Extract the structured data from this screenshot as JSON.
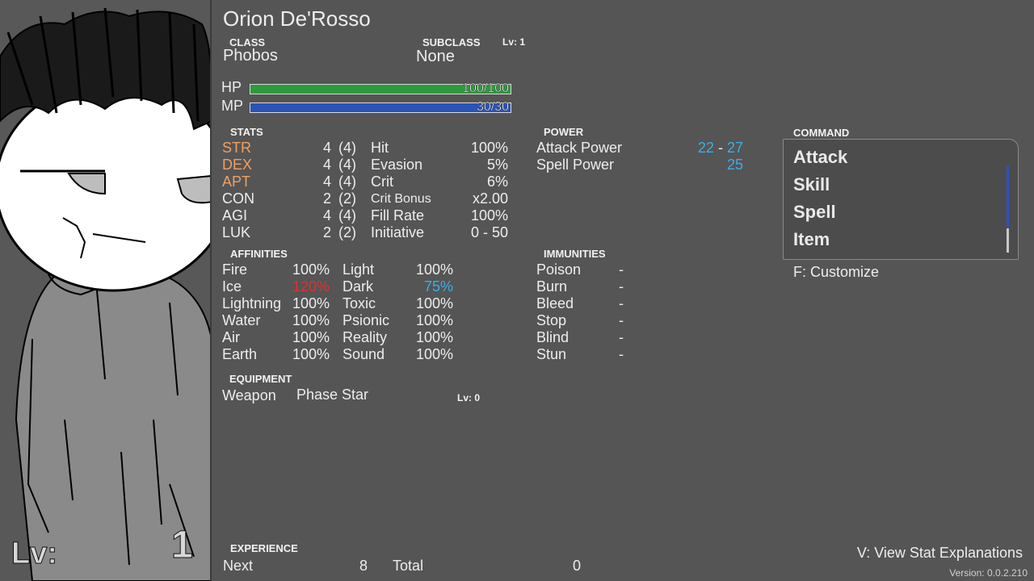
{
  "character": {
    "name": "Orion De'Rosso",
    "class_label": "CLASS",
    "class_value": "Phobos",
    "subclass_label": "SUBCLASS",
    "subclass_level": "Lv: 1",
    "subclass_value": "None",
    "portrait_level_label": "Lv:",
    "portrait_level_value": "1"
  },
  "bars": {
    "hp_label": "HP",
    "hp_text": "100/100",
    "hp_fraction": 1.0,
    "hp_color": "#2e9a3e",
    "mp_label": "MP",
    "mp_text": "30/30",
    "mp_fraction": 1.0,
    "mp_color": "#2a54b8"
  },
  "stats": {
    "header": "STATS",
    "rows": [
      {
        "name": "STR",
        "value": "4",
        "base": "(4)",
        "sub": "Hit",
        "sub_value": "100%",
        "highlight": true
      },
      {
        "name": "DEX",
        "value": "4",
        "base": "(4)",
        "sub": "Evasion",
        "sub_value": "5%",
        "highlight": true
      },
      {
        "name": "APT",
        "value": "4",
        "base": "(4)",
        "sub": "Crit",
        "sub_value": "6%",
        "highlight": true
      },
      {
        "name": "CON",
        "value": "2",
        "base": "(2)",
        "sub": "Crit Bonus",
        "sub_value": "x2.00",
        "highlight": false
      },
      {
        "name": "AGI",
        "value": "4",
        "base": "(4)",
        "sub": "Fill Rate",
        "sub_value": "100%",
        "highlight": false
      },
      {
        "name": "LUK",
        "value": "2",
        "base": "(2)",
        "sub": "Initiative",
        "sub_value": "0 - 50",
        "highlight": false
      }
    ]
  },
  "power": {
    "header": "POWER",
    "attack_label": "Attack Power",
    "attack_min": "22",
    "attack_sep": "-",
    "attack_max": "27",
    "spell_label": "Spell Power",
    "spell_value": "25"
  },
  "affinities": {
    "header": "AFFINITIES",
    "rows": [
      {
        "a": "Fire",
        "av": "100%",
        "b": "Light",
        "bv": "100%"
      },
      {
        "a": "Ice",
        "av": "120%",
        "b": "Dark",
        "bv": "75%"
      },
      {
        "a": "Lightning",
        "av": "100%",
        "b": "Toxic",
        "bv": "100%"
      },
      {
        "a": "Water",
        "av": "100%",
        "b": "Psionic",
        "bv": "100%"
      },
      {
        "a": "Air",
        "av": "100%",
        "b": "Reality",
        "bv": "100%"
      },
      {
        "a": "Earth",
        "av": "100%",
        "b": "Sound",
        "bv": "100%"
      }
    ]
  },
  "immunities": {
    "header": "IMMUNITIES",
    "rows": [
      {
        "name": "Poison",
        "value": "-"
      },
      {
        "name": "Burn",
        "value": "-"
      },
      {
        "name": "Bleed",
        "value": "-"
      },
      {
        "name": "Stop",
        "value": "-"
      },
      {
        "name": "Blind",
        "value": "-"
      },
      {
        "name": "Stun",
        "value": "-"
      }
    ]
  },
  "equipment": {
    "header": "EQUIPMENT",
    "slot": "Weapon",
    "item": "Phase Star",
    "level": "Lv: 0"
  },
  "command": {
    "header": "COMMAND",
    "items": [
      "Attack",
      "Skill",
      "Spell",
      "Item"
    ],
    "customize": "F: Customize"
  },
  "experience": {
    "header": "EXPERIENCE",
    "next_label": "Next",
    "next_value": "8",
    "total_label": "Total",
    "total_value": "0"
  },
  "footer": {
    "stat_explanations": "V: View Stat Explanations",
    "version": "Version: 0.0.2.210"
  },
  "colors": {
    "background": "#555555",
    "highlight_stat": "#f0a060",
    "power_value": "#3aaee8",
    "weak": "#e03030",
    "resist": "#3aaee8"
  }
}
